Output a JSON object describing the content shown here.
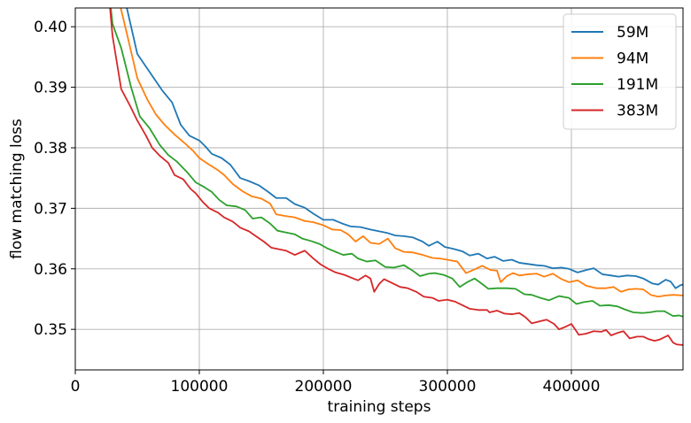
{
  "chart_data": {
    "type": "line",
    "xlabel": "training steps",
    "ylabel": "flow matching loss",
    "xlim": [
      0,
      490000
    ],
    "ylim": [
      0.3433,
      0.4031
    ],
    "x_ticks": [
      0,
      100000,
      200000,
      300000,
      400000
    ],
    "x_tick_labels": [
      "0",
      "100000",
      "200000",
      "300000",
      "400000"
    ],
    "y_ticks": [
      0.35,
      0.36,
      0.37,
      0.38,
      0.39,
      0.4
    ],
    "y_tick_labels": [
      "0.35",
      "0.36",
      "0.37",
      "0.38",
      "0.39",
      "0.40"
    ],
    "grid": true,
    "legend_position": "top-right",
    "series": [
      {
        "name": "59M",
        "color": "#1f77b4",
        "points": [
          [
            25000,
            0.41
          ],
          [
            40000,
            0.4045
          ],
          [
            50000,
            0.3955
          ],
          [
            60000,
            0.3925
          ],
          [
            70000,
            0.3895
          ],
          [
            78000,
            0.3875
          ],
          [
            85000,
            0.3838
          ],
          [
            92000,
            0.382
          ],
          [
            100000,
            0.3812
          ],
          [
            105000,
            0.3802
          ],
          [
            110000,
            0.379
          ],
          [
            118000,
            0.3783
          ],
          [
            125000,
            0.3772
          ],
          [
            133000,
            0.375
          ],
          [
            140000,
            0.3745
          ],
          [
            148000,
            0.3738
          ],
          [
            155000,
            0.3728
          ],
          [
            162000,
            0.3717
          ],
          [
            170000,
            0.3717
          ],
          [
            177000,
            0.3707
          ],
          [
            185000,
            0.3701
          ],
          [
            192000,
            0.3691
          ],
          [
            200000,
            0.3681
          ],
          [
            208000,
            0.3681
          ],
          [
            215000,
            0.3675
          ],
          [
            222000,
            0.367
          ],
          [
            230000,
            0.3669
          ],
          [
            238000,
            0.3665
          ],
          [
            245000,
            0.3662
          ],
          [
            252000,
            0.3659
          ],
          [
            258000,
            0.3655
          ],
          [
            265000,
            0.3654
          ],
          [
            272000,
            0.3652
          ],
          [
            280000,
            0.3645
          ],
          [
            285000,
            0.3638
          ],
          [
            292000,
            0.3645
          ],
          [
            298000,
            0.3636
          ],
          [
            305000,
            0.3633
          ],
          [
            312000,
            0.3629
          ],
          [
            318000,
            0.3622
          ],
          [
            325000,
            0.3625
          ],
          [
            332000,
            0.3617
          ],
          [
            338000,
            0.362
          ],
          [
            345000,
            0.3613
          ],
          [
            352000,
            0.3615
          ],
          [
            358000,
            0.361
          ],
          [
            365000,
            0.3608
          ],
          [
            372000,
            0.3606
          ],
          [
            378000,
            0.3605
          ],
          [
            385000,
            0.3601
          ],
          [
            392000,
            0.3602
          ],
          [
            398000,
            0.36
          ],
          [
            405000,
            0.3594
          ],
          [
            412000,
            0.3598
          ],
          [
            418000,
            0.3601
          ],
          [
            425000,
            0.3591
          ],
          [
            432000,
            0.3589
          ],
          [
            438000,
            0.3587
          ],
          [
            445000,
            0.3589
          ],
          [
            452000,
            0.3588
          ],
          [
            458000,
            0.3584
          ],
          [
            465000,
            0.3576
          ],
          [
            470000,
            0.3574
          ],
          [
            476000,
            0.3582
          ],
          [
            480000,
            0.3579
          ],
          [
            484000,
            0.3568
          ],
          [
            488000,
            0.3573
          ],
          [
            490000,
            0.3574
          ]
        ]
      },
      {
        "name": "94M",
        "color": "#ff7f0e",
        "points": [
          [
            25000,
            0.41
          ],
          [
            35000,
            0.4045
          ],
          [
            42000,
            0.3985
          ],
          [
            50000,
            0.3915
          ],
          [
            58000,
            0.388
          ],
          [
            65000,
            0.3855
          ],
          [
            72000,
            0.3838
          ],
          [
            80000,
            0.3822
          ],
          [
            88000,
            0.3808
          ],
          [
            95000,
            0.3795
          ],
          [
            100000,
            0.3783
          ],
          [
            108000,
            0.3772
          ],
          [
            115000,
            0.3763
          ],
          [
            120000,
            0.3755
          ],
          [
            127000,
            0.374
          ],
          [
            135000,
            0.3728
          ],
          [
            142000,
            0.372
          ],
          [
            150000,
            0.3716
          ],
          [
            157000,
            0.3708
          ],
          [
            162000,
            0.369
          ],
          [
            170000,
            0.3687
          ],
          [
            177000,
            0.3685
          ],
          [
            185000,
            0.3679
          ],
          [
            192000,
            0.3677
          ],
          [
            200000,
            0.3672
          ],
          [
            207000,
            0.3665
          ],
          [
            214000,
            0.3664
          ],
          [
            220000,
            0.3657
          ],
          [
            226000,
            0.3645
          ],
          [
            232000,
            0.3654
          ],
          [
            238000,
            0.3643
          ],
          [
            245000,
            0.3641
          ],
          [
            252000,
            0.365
          ],
          [
            258000,
            0.3634
          ],
          [
            265000,
            0.3628
          ],
          [
            272000,
            0.3627
          ],
          [
            280000,
            0.3623
          ],
          [
            288000,
            0.3618
          ],
          [
            294000,
            0.3617
          ],
          [
            300000,
            0.3615
          ],
          [
            308000,
            0.3612
          ],
          [
            315000,
            0.3593
          ],
          [
            322000,
            0.3599
          ],
          [
            328000,
            0.3605
          ],
          [
            335000,
            0.3598
          ],
          [
            340000,
            0.3597
          ],
          [
            343000,
            0.3578
          ],
          [
            348000,
            0.3588
          ],
          [
            353000,
            0.3593
          ],
          [
            358000,
            0.3589
          ],
          [
            365000,
            0.3591
          ],
          [
            372000,
            0.3592
          ],
          [
            378000,
            0.3587
          ],
          [
            385000,
            0.3592
          ],
          [
            392000,
            0.3583
          ],
          [
            398000,
            0.3578
          ],
          [
            405000,
            0.3581
          ],
          [
            412000,
            0.3572
          ],
          [
            420000,
            0.3568
          ],
          [
            428000,
            0.3568
          ],
          [
            434000,
            0.357
          ],
          [
            440000,
            0.3562
          ],
          [
            446000,
            0.3566
          ],
          [
            452000,
            0.3567
          ],
          [
            458000,
            0.3566
          ],
          [
            464000,
            0.3557
          ],
          [
            470000,
            0.3554
          ],
          [
            476000,
            0.3556
          ],
          [
            482000,
            0.3557
          ],
          [
            490000,
            0.3556
          ]
        ]
      },
      {
        "name": "191M",
        "color": "#2ca02c",
        "points": [
          [
            25000,
            0.41
          ],
          [
            30000,
            0.4005
          ],
          [
            37000,
            0.3965
          ],
          [
            45000,
            0.39
          ],
          [
            52000,
            0.3852
          ],
          [
            60000,
            0.3832
          ],
          [
            68000,
            0.3805
          ],
          [
            75000,
            0.3788
          ],
          [
            82000,
            0.3777
          ],
          [
            90000,
            0.376
          ],
          [
            97000,
            0.3743
          ],
          [
            104000,
            0.3735
          ],
          [
            110000,
            0.3727
          ],
          [
            116000,
            0.3714
          ],
          [
            122000,
            0.3705
          ],
          [
            130000,
            0.3703
          ],
          [
            137000,
            0.3697
          ],
          [
            143000,
            0.3683
          ],
          [
            150000,
            0.3685
          ],
          [
            157000,
            0.3675
          ],
          [
            163000,
            0.3663
          ],
          [
            170000,
            0.366
          ],
          [
            177000,
            0.3657
          ],
          [
            183000,
            0.365
          ],
          [
            190000,
            0.3646
          ],
          [
            197000,
            0.3641
          ],
          [
            203000,
            0.3634
          ],
          [
            210000,
            0.3628
          ],
          [
            216000,
            0.3623
          ],
          [
            223000,
            0.3625
          ],
          [
            228000,
            0.3617
          ],
          [
            235000,
            0.3612
          ],
          [
            242000,
            0.3614
          ],
          [
            250000,
            0.3603
          ],
          [
            257000,
            0.3602
          ],
          [
            265000,
            0.3606
          ],
          [
            272000,
            0.3597
          ],
          [
            278000,
            0.3588
          ],
          [
            285000,
            0.3592
          ],
          [
            290000,
            0.3593
          ],
          [
            297000,
            0.359
          ],
          [
            304000,
            0.3584
          ],
          [
            310000,
            0.357
          ],
          [
            316000,
            0.3578
          ],
          [
            322000,
            0.3584
          ],
          [
            328000,
            0.3575
          ],
          [
            333000,
            0.3567
          ],
          [
            340000,
            0.3568
          ],
          [
            348000,
            0.3568
          ],
          [
            355000,
            0.3567
          ],
          [
            362000,
            0.3558
          ],
          [
            368000,
            0.3557
          ],
          [
            375000,
            0.3552
          ],
          [
            382000,
            0.3548
          ],
          [
            390000,
            0.3555
          ],
          [
            398000,
            0.3552
          ],
          [
            404000,
            0.3542
          ],
          [
            410000,
            0.3545
          ],
          [
            417000,
            0.3547
          ],
          [
            423000,
            0.3539
          ],
          [
            430000,
            0.354
          ],
          [
            437000,
            0.3538
          ],
          [
            443000,
            0.3533
          ],
          [
            450000,
            0.3528
          ],
          [
            457000,
            0.3527
          ],
          [
            463000,
            0.3528
          ],
          [
            469000,
            0.353
          ],
          [
            475000,
            0.353
          ],
          [
            482000,
            0.3522
          ],
          [
            487000,
            0.3523
          ],
          [
            490000,
            0.3521
          ]
        ]
      },
      {
        "name": "383M",
        "color": "#d62728",
        "points": [
          [
            25000,
            0.41
          ],
          [
            30000,
            0.3985
          ],
          [
            37000,
            0.3897
          ],
          [
            44000,
            0.387
          ],
          [
            50000,
            0.3845
          ],
          [
            57000,
            0.382
          ],
          [
            62000,
            0.38
          ],
          [
            68000,
            0.3787
          ],
          [
            75000,
            0.3775
          ],
          [
            80000,
            0.3755
          ],
          [
            87000,
            0.3748
          ],
          [
            93000,
            0.3732
          ],
          [
            97000,
            0.3725
          ],
          [
            103000,
            0.371
          ],
          [
            108000,
            0.37
          ],
          [
            115000,
            0.3693
          ],
          [
            120000,
            0.3685
          ],
          [
            127000,
            0.3678
          ],
          [
            133000,
            0.3668
          ],
          [
            140000,
            0.3662
          ],
          [
            147000,
            0.3652
          ],
          [
            152000,
            0.3645
          ],
          [
            158000,
            0.3635
          ],
          [
            165000,
            0.3632
          ],
          [
            170000,
            0.363
          ],
          [
            177000,
            0.3623
          ],
          [
            185000,
            0.363
          ],
          [
            192000,
            0.3617
          ],
          [
            198000,
            0.3607
          ],
          [
            204000,
            0.36
          ],
          [
            210000,
            0.3594
          ],
          [
            217000,
            0.359
          ],
          [
            223000,
            0.3585
          ],
          [
            228000,
            0.3581
          ],
          [
            234000,
            0.3589
          ],
          [
            238000,
            0.3584
          ],
          [
            241000,
            0.3562
          ],
          [
            245000,
            0.3575
          ],
          [
            249000,
            0.3583
          ],
          [
            255000,
            0.3577
          ],
          [
            262000,
            0.357
          ],
          [
            268000,
            0.3568
          ],
          [
            275000,
            0.3562
          ],
          [
            281000,
            0.3554
          ],
          [
            288000,
            0.3552
          ],
          [
            293000,
            0.3547
          ],
          [
            300000,
            0.3549
          ],
          [
            306000,
            0.3546
          ],
          [
            312000,
            0.354
          ],
          [
            318000,
            0.3534
          ],
          [
            325000,
            0.3532
          ],
          [
            332000,
            0.3532
          ],
          [
            334000,
            0.3528
          ],
          [
            340000,
            0.3531
          ],
          [
            346000,
            0.3526
          ],
          [
            352000,
            0.3525
          ],
          [
            358000,
            0.3527
          ],
          [
            363000,
            0.352
          ],
          [
            368000,
            0.351
          ],
          [
            374000,
            0.3513
          ],
          [
            380000,
            0.3516
          ],
          [
            386000,
            0.3509
          ],
          [
            390000,
            0.35
          ],
          [
            395000,
            0.3504
          ],
          [
            400000,
            0.3509
          ],
          [
            406000,
            0.3491
          ],
          [
            412000,
            0.3493
          ],
          [
            418000,
            0.3497
          ],
          [
            424000,
            0.3496
          ],
          [
            428000,
            0.3499
          ],
          [
            432000,
            0.349
          ],
          [
            437000,
            0.3494
          ],
          [
            442000,
            0.3497
          ],
          [
            447000,
            0.3485
          ],
          [
            453000,
            0.3488
          ],
          [
            458000,
            0.3488
          ],
          [
            462000,
            0.3484
          ],
          [
            467000,
            0.3481
          ],
          [
            471000,
            0.3483
          ],
          [
            475000,
            0.3487
          ],
          [
            478000,
            0.349
          ],
          [
            482000,
            0.3478
          ],
          [
            485000,
            0.3475
          ],
          [
            490000,
            0.3474
          ]
        ]
      }
    ]
  }
}
